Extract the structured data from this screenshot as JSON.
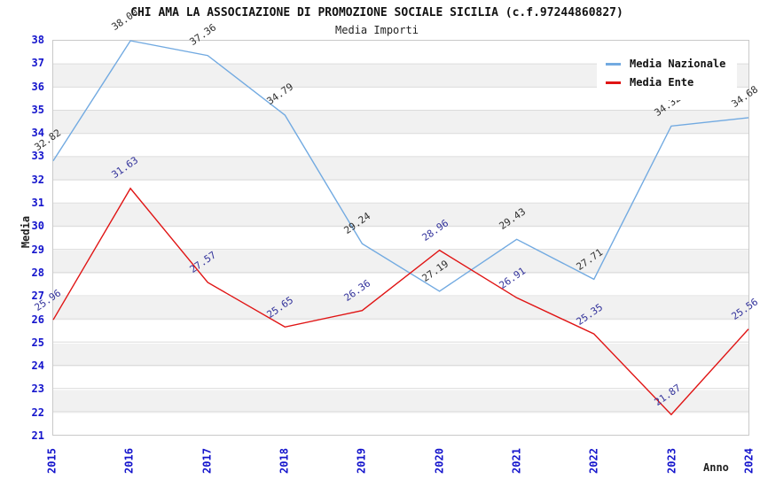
{
  "chart_data": {
    "type": "line",
    "title": "CHI AMA LA ASSOCIAZIONE DI PROMOZIONE SOCIALE SICILIA (c.f.97244860827)",
    "subtitle": "Media Importi",
    "xlabel": "Anno",
    "ylabel": "Media",
    "categories": [
      "2015",
      "2016",
      "2017",
      "2018",
      "2019",
      "2020",
      "2021",
      "2022",
      "2023",
      "2024"
    ],
    "ylim": [
      21,
      38
    ],
    "ytick_step": 1,
    "grid": "horizontal gridlines with alternating shaded bands",
    "legend_position": "top-right",
    "series": [
      {
        "name": "Media Nazionale",
        "color": "#72aae1",
        "label_color": "#2e2e2e",
        "values": [
          32.82,
          38.0,
          37.36,
          34.79,
          29.24,
          27.19,
          29.43,
          27.71,
          34.32,
          34.68
        ]
      },
      {
        "name": "Media Ente",
        "color": "#e01414",
        "label_color": "#32329b",
        "values": [
          25.96,
          31.63,
          27.57,
          25.65,
          26.36,
          28.96,
          26.91,
          25.35,
          21.87,
          25.56
        ]
      }
    ],
    "colors": {
      "tick_label": "#1414cc",
      "band": "#f1f1f1",
      "gridline": "#dcdcdc",
      "plot_border": "#c9c9c9",
      "background": "#ffffff"
    }
  }
}
